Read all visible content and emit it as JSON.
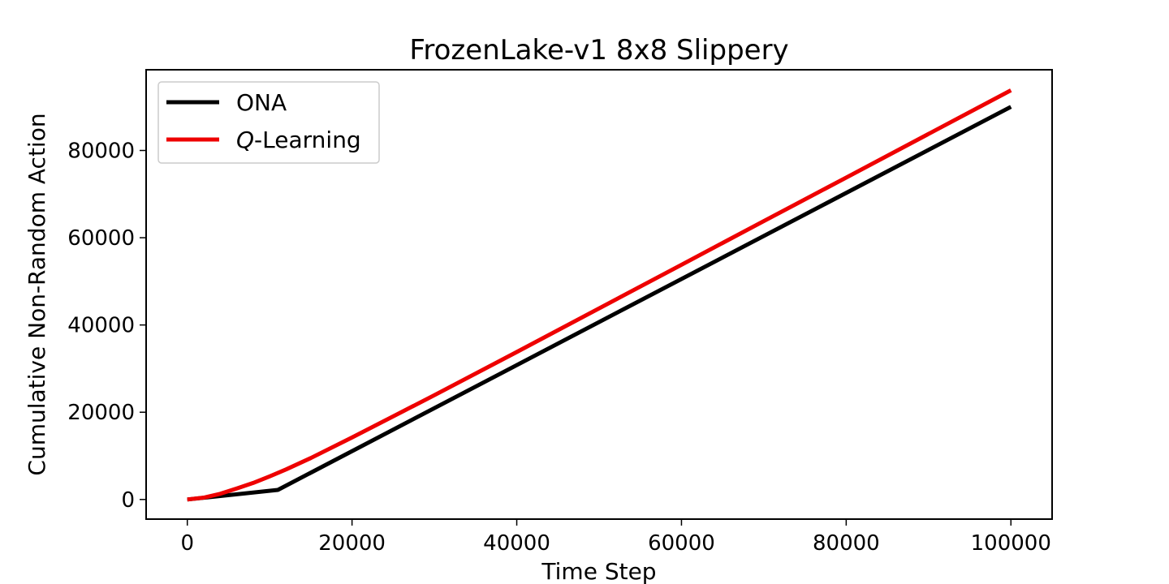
{
  "chart_data": {
    "type": "line",
    "title": "FrozenLake-v1 8x8 Slippery",
    "xlabel": "Time Step",
    "ylabel": "Cumulative Non-Random Action",
    "xlim": [
      -5000,
      105000
    ],
    "ylim": [
      -4500,
      98500
    ],
    "xticks": [
      0,
      20000,
      40000,
      60000,
      80000,
      100000
    ],
    "xtick_labels": [
      "0",
      "20000",
      "40000",
      "60000",
      "80000",
      "100000"
    ],
    "yticks": [
      0,
      20000,
      40000,
      60000,
      80000
    ],
    "ytick_labels": [
      "0",
      "20000",
      "40000",
      "60000",
      "80000"
    ],
    "grid": false,
    "legend": "top-left",
    "series": [
      {
        "name": "ONA",
        "color": "#000000",
        "x": [
          0,
          11000,
          100000
        ],
        "y": [
          0,
          2200,
          90000
        ]
      },
      {
        "name_italic": "Q",
        "name_rest": "-Learning",
        "color": "#ee0000",
        "x": [
          0,
          2000,
          4000,
          6000,
          8000,
          10000,
          12000,
          15000,
          20000,
          30000,
          40000,
          50000,
          60000,
          70000,
          80000,
          90000,
          100000
        ],
        "y": [
          0,
          420,
          1300,
          2500,
          3800,
          5300,
          6900,
          9500,
          14200,
          23900,
          33800,
          43800,
          53800,
          63800,
          73800,
          83800,
          93800
        ]
      }
    ]
  }
}
